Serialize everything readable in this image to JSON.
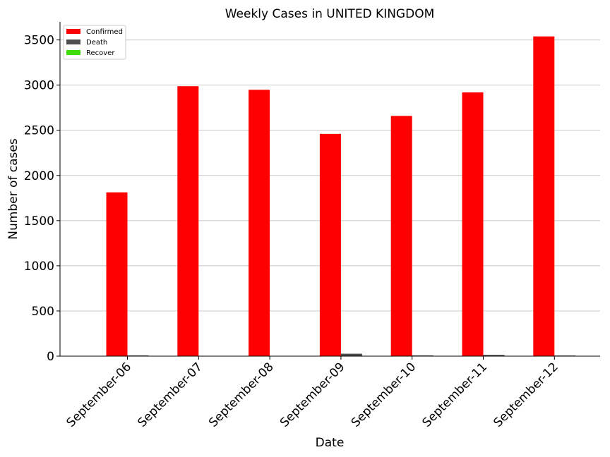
{
  "chart_data": {
    "type": "bar",
    "title": "Weekly Cases in UNITED KINGDOM",
    "xlabel": "Date",
    "ylabel": "Number of cases",
    "categories": [
      "September-06",
      "September-07",
      "September-08",
      "September-09",
      "September-10",
      "September-11",
      "September-12"
    ],
    "series": [
      {
        "name": "Confirmed",
        "color": "#ff0000",
        "values": [
          1813,
          2988,
          2948,
          2460,
          2659,
          2919,
          3539
        ]
      },
      {
        "name": "Death",
        "color": "#4d4d4d",
        "values": [
          8,
          0,
          0,
          27,
          8,
          14,
          7
        ]
      },
      {
        "name": "Recover",
        "color": "#3fdc0a",
        "values": [
          0,
          0,
          0,
          0,
          0,
          0,
          0
        ]
      }
    ],
    "ylim": [
      0,
      3700
    ],
    "yticks": [
      0,
      500,
      1000,
      1500,
      2000,
      2500,
      3000,
      3500
    ],
    "grid": "horizontal",
    "legend_position": "top-left"
  }
}
